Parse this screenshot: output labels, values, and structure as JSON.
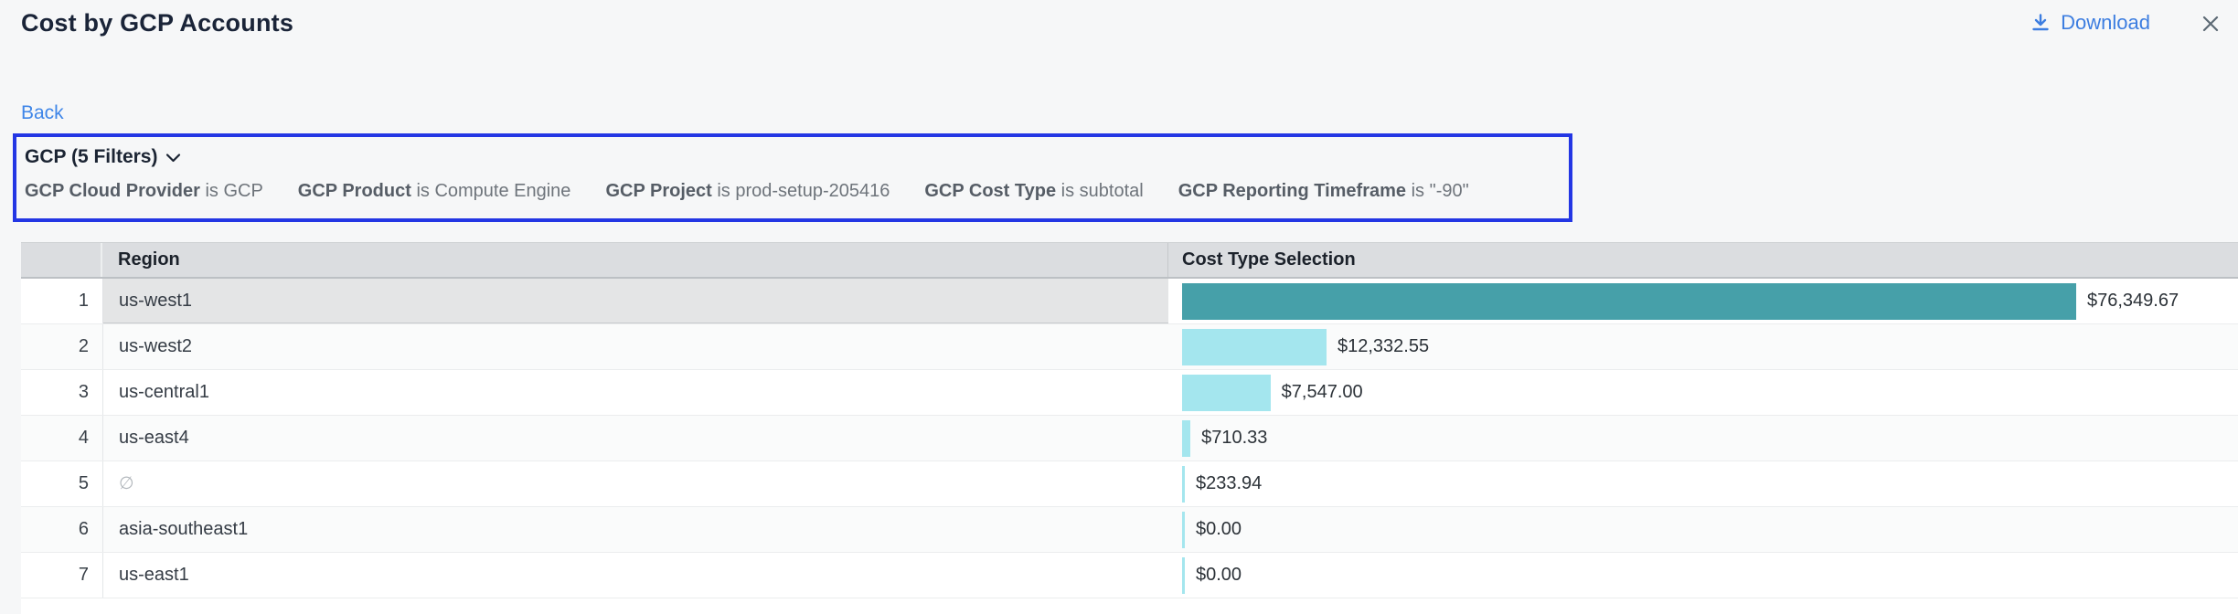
{
  "header": {
    "title": "Cost by GCP Accounts",
    "download_label": "Download"
  },
  "nav": {
    "back_label": "Back"
  },
  "filter_panel": {
    "summary_label": "GCP (5 Filters)",
    "filters": [
      {
        "field": "GCP Cloud Provider",
        "op": "is",
        "value": "GCP"
      },
      {
        "field": "GCP Product",
        "op": "is",
        "value": "Compute Engine"
      },
      {
        "field": "GCP Project",
        "op": "is",
        "value": "prod-setup-205416"
      },
      {
        "field": "GCP Cost Type",
        "op": "is",
        "value": "subtotal"
      },
      {
        "field": "GCP Reporting Timeframe",
        "op": "is",
        "value": "\"-90\""
      }
    ]
  },
  "table": {
    "columns": {
      "index": "",
      "region": "Region",
      "cost": "Cost Type Selection"
    }
  },
  "chart_data": {
    "type": "bar",
    "orientation": "horizontal",
    "title": "Cost by GCP Accounts",
    "categories": [
      "us-west1",
      "us-west2",
      "us-central1",
      "us-east4",
      "∅",
      "asia-southeast1",
      "us-east1"
    ],
    "values": [
      76349.67,
      12332.55,
      7547.0,
      710.33,
      233.94,
      0.0,
      0.0
    ],
    "value_labels": [
      "$76,349.67",
      "$12,332.55",
      "$7,547.00",
      "$710.33",
      "$233.94",
      "$0.00",
      "$0.00"
    ],
    "row_numbers": [
      "1",
      "2",
      "3",
      "4",
      "5",
      "6",
      "7"
    ],
    "xlabel": "Cost Type Selection",
    "ylabel": "Region",
    "xlim": [
      0,
      76349.67
    ],
    "selected_row_index": 0,
    "grid": false,
    "legend": false
  },
  "colors": {
    "accent_blue": "#2336e4",
    "link_blue": "#3c7de0",
    "bar_selected": "#46a0a9",
    "bar_default": "#a4e6ee",
    "header_gray": "#dbdde0",
    "selected_cell_gray": "#e4e5e6"
  }
}
